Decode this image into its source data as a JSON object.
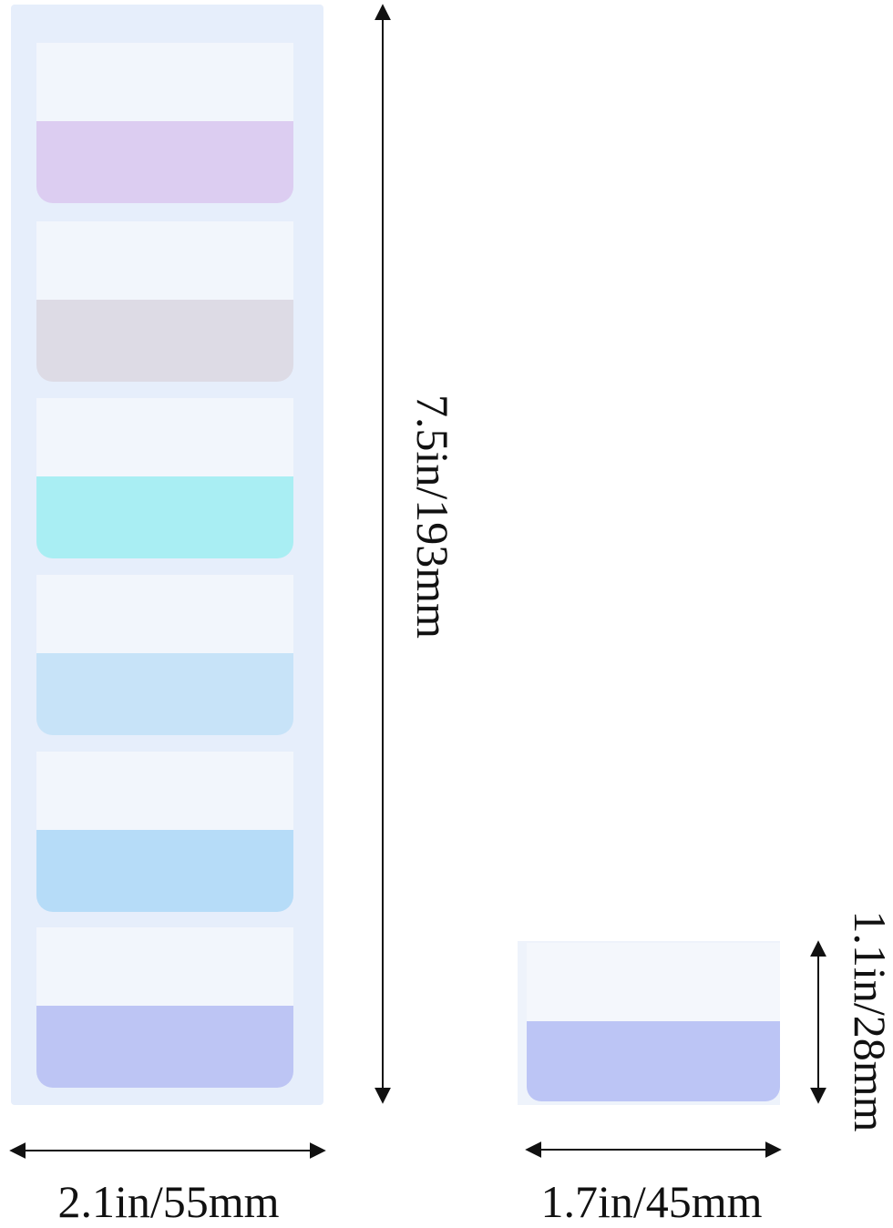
{
  "large_strip": {
    "tab_colors": [
      "#dccdf1",
      "#dddbe5",
      "#a9eef3",
      "#c7e3f8",
      "#b6dcf8",
      "#bdc5f4"
    ],
    "height_label": "7.5in/193mm",
    "width_label": "2.1in/55mm"
  },
  "single_tab": {
    "color": "#bcc5f5",
    "height_label": "1.1in/28mm",
    "width_label": "1.7in/45mm"
  }
}
